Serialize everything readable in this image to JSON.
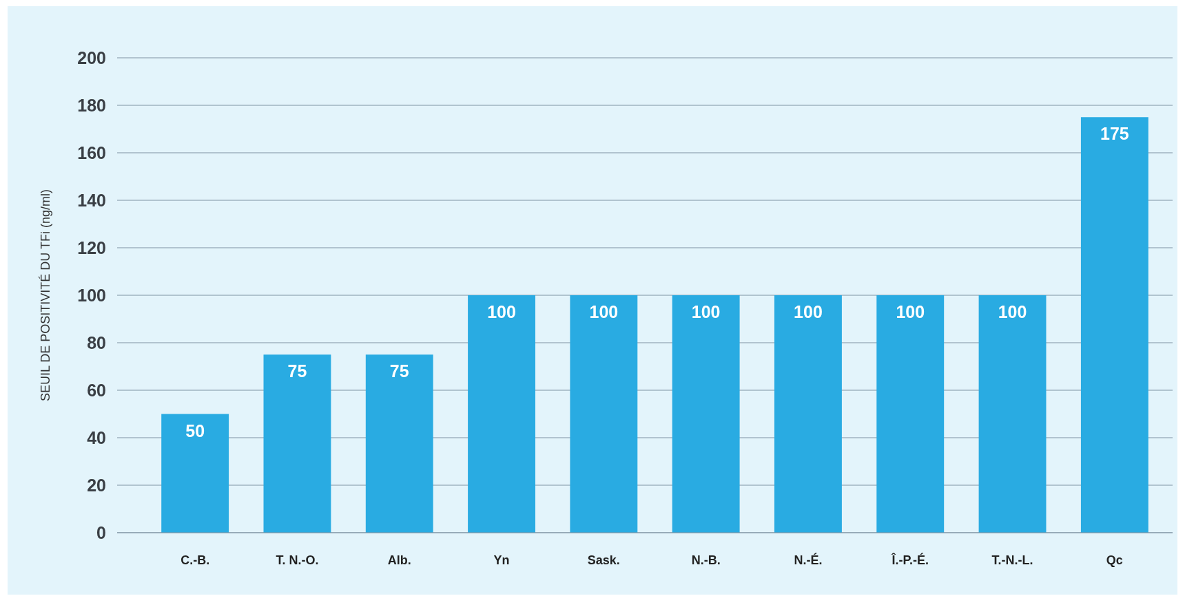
{
  "chart_data": {
    "type": "bar",
    "ylabel": "SEUIL DE POSITIVITÉ DU TFi (ng/ml)",
    "categories": [
      "C.-B.",
      "T. N.-O.",
      "Alb.",
      "Yn",
      "Sask.",
      "N.-B.",
      "N.-É.",
      "Î.-P.-É.",
      "T.-N.-L.",
      "Qc"
    ],
    "values": [
      50,
      75,
      75,
      100,
      100,
      100,
      100,
      100,
      100,
      175
    ],
    "color": "#29abe2",
    "ylim": [
      0,
      200
    ],
    "yticks": [
      0,
      20,
      40,
      60,
      80,
      100,
      120,
      140,
      160,
      180,
      200
    ],
    "grid": "y",
    "data_labels": true
  }
}
